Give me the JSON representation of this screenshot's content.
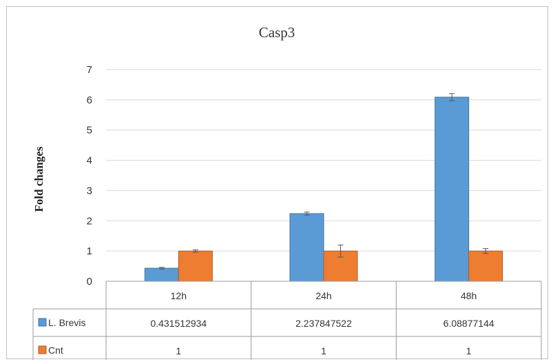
{
  "chart_data": {
    "type": "bar",
    "title": "Casp3",
    "ylabel": "Fold changes",
    "xlabel": "",
    "ylim": [
      0,
      7
    ],
    "yticks": [
      "0",
      "1",
      "2",
      "3",
      "4",
      "5",
      "6",
      "7"
    ],
    "grid": true,
    "categories": [
      "12h",
      "24h",
      "48h"
    ],
    "series": [
      {
        "name": "L. Brevis",
        "color": "#5b9bd5",
        "values": [
          0.431512934,
          2.237847522,
          6.08877144
        ],
        "value_labels": [
          "0.431512934",
          "2.237847522",
          "6.08877144"
        ],
        "error": [
          0.03,
          0.05,
          0.12
        ]
      },
      {
        "name": "Cnt",
        "color": "#ed7d31",
        "values": [
          1,
          1,
          1
        ],
        "value_labels": [
          "1",
          "1",
          "1"
        ],
        "error": [
          0.04,
          0.2,
          0.08
        ]
      }
    ],
    "legend": "data-table"
  }
}
